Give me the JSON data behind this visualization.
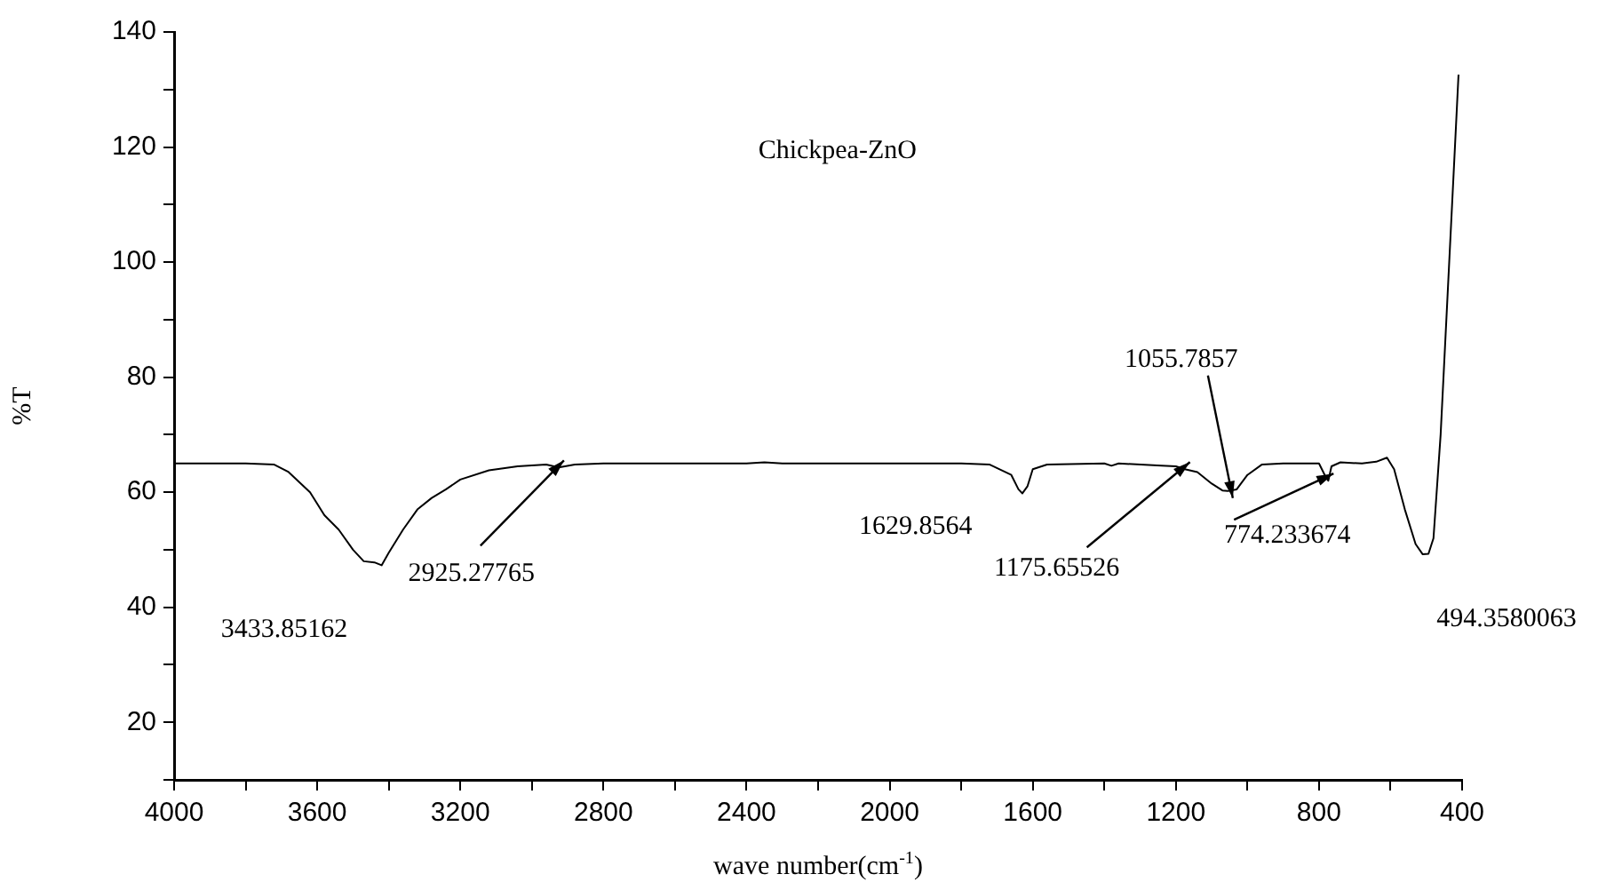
{
  "chart_data": {
    "type": "line",
    "title": "Chickpea-ZnO",
    "xlabel": "wave number(cm$^{-1}$)",
    "ylabel": "%T",
    "xlim": [
      4000,
      400
    ],
    "ylim": [
      10,
      140
    ],
    "xticks": [
      4000,
      {
        "value": 3800,
        "label": null
      },
      3600,
      {
        "value": 3400,
        "label": null
      },
      3200,
      {
        "value": 3000,
        "label": null
      },
      2800,
      {
        "value": 2600,
        "label": null
      },
      2400,
      {
        "value": 2200,
        "label": null
      },
      2000,
      {
        "value": 1800,
        "label": null
      },
      1600,
      {
        "value": 1400,
        "label": null
      },
      1200,
      {
        "value": 1000,
        "label": null
      },
      800,
      {
        "value": 600,
        "label": null
      },
      400
    ],
    "yticks": [
      {
        "value": 10,
        "label": null
      },
      20,
      {
        "value": 30,
        "label": null
      },
      40,
      {
        "value": 50,
        "label": null
      },
      60,
      {
        "value": 70,
        "label": null
      },
      80,
      {
        "value": 90,
        "label": null
      },
      100,
      {
        "value": 110,
        "label": null
      },
      120,
      {
        "value": 130,
        "label": null
      },
      140
    ],
    "marker": "none",
    "line_style": "solid",
    "series": [
      {
        "color": "#000000",
        "x": [
          4000,
          3800,
          3720,
          3680,
          3620,
          3580,
          3540,
          3500,
          3470,
          3440,
          3420,
          3400,
          3360,
          3320,
          3280,
          3240,
          3200,
          3120,
          3040,
          2960,
          2925,
          2880,
          2800,
          2400,
          2350,
          2300,
          2000,
          1800,
          1720,
          1660,
          1640,
          1629,
          1615,
          1600,
          1560,
          1400,
          1380,
          1360,
          1240,
          1200,
          1175,
          1140,
          1100,
          1070,
          1055,
          1030,
          1000,
          960,
          900,
          800,
          780,
          774,
          765,
          740,
          680,
          640,
          610,
          590,
          560,
          530,
          510,
          494,
          480,
          460,
          440,
          420,
          410
        ],
        "values": [
          65,
          65,
          64.8,
          63.5,
          60,
          56,
          53.5,
          50,
          48,
          47.8,
          47.3,
          49.5,
          53.5,
          57,
          59,
          60.5,
          62.2,
          63.8,
          64.5,
          64.8,
          64.3,
          64.8,
          65,
          65,
          65.2,
          65,
          65,
          65,
          64.8,
          63,
          60.5,
          59.8,
          61,
          64,
          64.8,
          65,
          64.6,
          65,
          64.6,
          64.5,
          64,
          63.5,
          61.5,
          60.3,
          60.2,
          60.5,
          63,
          64.8,
          65,
          65,
          62.5,
          62,
          64.5,
          65.2,
          65,
          65.3,
          66,
          64,
          57,
          51,
          49.2,
          49.3,
          52,
          70,
          95,
          120,
          132.6
        ]
      }
    ],
    "annotations": [
      {
        "text": "3433.85162",
        "x": 3433.85162,
        "y": 47.5
      },
      {
        "text": "2925.27765",
        "x": 2925.27765,
        "y": 64.3
      },
      {
        "text": "1629.8564",
        "x": 1629.8564,
        "y": 59.8
      },
      {
        "text": "1175.65526",
        "x": 1175.65526,
        "y": 64
      },
      {
        "text": "1055.7857",
        "x": 1055.7857,
        "y": 60.2
      },
      {
        "text": "774.233674",
        "x": 774.233674,
        "y": 62
      },
      {
        "text": "494.3580063",
        "x": 494.3580063,
        "y": 49.3
      }
    ]
  }
}
